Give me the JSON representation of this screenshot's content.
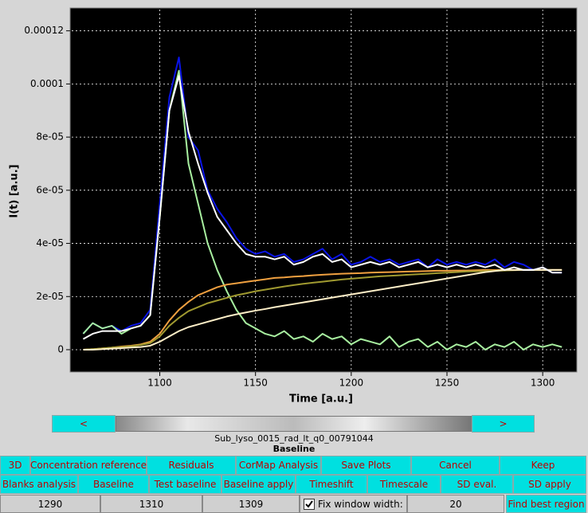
{
  "chart_data": {
    "type": "line",
    "x_label": "Time [a.u.]",
    "y_label": "I(t) [a.u.]",
    "xlim": [
      1054,
      1317
    ],
    "ylim": [
      -7.8e-06,
      0.000128
    ],
    "xticks": [
      1100,
      1150,
      1200,
      1250,
      1300
    ],
    "yticks": [
      0,
      {
        "value": 2e-05,
        "label": "2e-05"
      },
      {
        "value": 4e-05,
        "label": "4e-05"
      },
      {
        "value": 6e-05,
        "label": "6e-05"
      },
      {
        "value": 8e-05,
        "label": "8e-05"
      },
      0.0001,
      0.00012
    ],
    "grid": true,
    "background": "#000000",
    "grid_color": "#ffffff",
    "x": [
      1060,
      1065,
      1070,
      1075,
      1080,
      1085,
      1090,
      1095,
      1100,
      1105,
      1110,
      1115,
      1120,
      1125,
      1130,
      1135,
      1140,
      1145,
      1150,
      1155,
      1160,
      1165,
      1170,
      1175,
      1180,
      1185,
      1190,
      1195,
      1200,
      1205,
      1210,
      1215,
      1220,
      1225,
      1230,
      1235,
      1240,
      1245,
      1250,
      1255,
      1260,
      1265,
      1270,
      1275,
      1280,
      1285,
      1290,
      1295,
      1300,
      1305,
      1310
    ],
    "series": [
      {
        "color": "#0a14e6",
        "values": [
          6e-06,
          1e-05,
          8e-06,
          9e-06,
          7e-06,
          9e-06,
          1e-05,
          1.5e-05,
          5.5e-05,
          9.5e-05,
          0.00011,
          8e-05,
          7.5e-05,
          6e-05,
          5.3e-05,
          4.8e-05,
          4.2e-05,
          3.8e-05,
          3.6e-05,
          3.7e-05,
          3.5e-05,
          3.6e-05,
          3.3e-05,
          3.4e-05,
          3.6e-05,
          3.8e-05,
          3.4e-05,
          3.6e-05,
          3.2e-05,
          3.3e-05,
          3.5e-05,
          3.3e-05,
          3.4e-05,
          3.2e-05,
          3.3e-05,
          3.4e-05,
          3.1e-05,
          3.4e-05,
          3.2e-05,
          3.3e-05,
          3.2e-05,
          3.3e-05,
          3.2e-05,
          3.4e-05,
          3.1e-05,
          3.3e-05,
          3.2e-05,
          3e-05,
          3.1e-05,
          2.9e-05,
          2.9e-05
        ]
      },
      {
        "color": "#a8f0a0",
        "values": [
          6e-06,
          1e-05,
          8e-06,
          9e-06,
          6e-06,
          8e-06,
          9e-06,
          1.3e-05,
          5e-05,
          9e-05,
          0.000105,
          7e-05,
          5.5e-05,
          4e-05,
          3e-05,
          2.2e-05,
          1.5e-05,
          1e-05,
          8e-06,
          6e-06,
          5e-06,
          7e-06,
          4e-06,
          5e-06,
          3e-06,
          6e-06,
          4e-06,
          5e-06,
          2e-06,
          4e-06,
          3e-06,
          2e-06,
          5e-06,
          1e-06,
          3e-06,
          4e-06,
          1e-06,
          3e-06,
          0,
          2e-06,
          1e-06,
          3e-06,
          0,
          2e-06,
          1e-06,
          3e-06,
          0,
          2e-06,
          1e-06,
          2e-06,
          1e-06
        ]
      },
      {
        "color": "#f0a040",
        "values": [
          0,
          2e-07,
          5e-07,
          8e-07,
          1.2e-06,
          1.5e-06,
          2e-06,
          3e-06,
          6e-06,
          1.1e-05,
          1.5e-05,
          1.8e-05,
          2.05e-05,
          2.2e-05,
          2.35e-05,
          2.45e-05,
          2.5e-05,
          2.55e-05,
          2.6e-05,
          2.65e-05,
          2.7e-05,
          2.72e-05,
          2.75e-05,
          2.77e-05,
          2.8e-05,
          2.82e-05,
          2.84e-05,
          2.86e-05,
          2.87e-05,
          2.88e-05,
          2.9e-05,
          2.91e-05,
          2.92e-05,
          2.93e-05,
          2.94e-05,
          2.95e-05,
          2.96e-05,
          2.97e-05,
          2.97e-05,
          2.98e-05,
          2.98e-05,
          2.99e-05,
          3e-05,
          3e-05,
          3e-05,
          3e-05,
          3e-05,
          3e-05,
          3e-05,
          3e-05,
          3e-05
        ]
      },
      {
        "color": "#a09a30",
        "values": [
          0,
          2e-07,
          5e-07,
          8e-07,
          1e-06,
          1.3e-06,
          1.8e-06,
          2.5e-06,
          5e-06,
          9e-06,
          1.2e-05,
          1.45e-05,
          1.6e-05,
          1.75e-05,
          1.85e-05,
          1.95e-05,
          2.05e-05,
          2.12e-05,
          2.2e-05,
          2.26e-05,
          2.32e-05,
          2.38e-05,
          2.43e-05,
          2.48e-05,
          2.52e-05,
          2.56e-05,
          2.6e-05,
          2.64e-05,
          2.67e-05,
          2.7e-05,
          2.73e-05,
          2.76e-05,
          2.78e-05,
          2.8e-05,
          2.82e-05,
          2.84e-05,
          2.86e-05,
          2.88e-05,
          2.9e-05,
          2.92e-05,
          2.94e-05,
          2.95e-05,
          2.96e-05,
          2.97e-05,
          2.98e-05,
          2.99e-05,
          3e-05,
          3e-05,
          3e-05,
          3e-05,
          3e-05
        ]
      },
      {
        "color": "#fff0c8",
        "values": [
          0,
          0,
          2e-07,
          4e-07,
          6e-07,
          8e-07,
          1e-06,
          1.5e-06,
          3e-06,
          5e-06,
          7e-06,
          8.5e-06,
          9.5e-06,
          1.05e-05,
          1.15e-05,
          1.25e-05,
          1.33e-05,
          1.4e-05,
          1.47e-05,
          1.53e-05,
          1.6e-05,
          1.66e-05,
          1.72e-05,
          1.78e-05,
          1.84e-05,
          1.9e-05,
          1.96e-05,
          2.02e-05,
          2.08e-05,
          2.14e-05,
          2.2e-05,
          2.26e-05,
          2.32e-05,
          2.38e-05,
          2.44e-05,
          2.5e-05,
          2.56e-05,
          2.62e-05,
          2.68e-05,
          2.74e-05,
          2.8e-05,
          2.86e-05,
          2.92e-05,
          2.96e-05,
          3e-05,
          3e-05,
          3e-05,
          3e-05,
          3e-05,
          3e-05,
          3e-05
        ]
      },
      {
        "color": "#ffffff",
        "values": [
          4e-06,
          6e-06,
          7e-06,
          7e-06,
          7e-06,
          8e-06,
          9e-06,
          1.3e-05,
          5e-05,
          9e-05,
          0.000103,
          8.2e-05,
          7e-05,
          5.9e-05,
          5e-05,
          4.5e-05,
          4e-05,
          3.6e-05,
          3.5e-05,
          3.5e-05,
          3.4e-05,
          3.5e-05,
          3.2e-05,
          3.3e-05,
          3.5e-05,
          3.6e-05,
          3.3e-05,
          3.4e-05,
          3.1e-05,
          3.2e-05,
          3.3e-05,
          3.2e-05,
          3.3e-05,
          3.1e-05,
          3.2e-05,
          3.3e-05,
          3.1e-05,
          3.2e-05,
          3.1e-05,
          3.2e-05,
          3.1e-05,
          3.2e-05,
          3.1e-05,
          3.2e-05,
          3e-05,
          3.1e-05,
          3e-05,
          3e-05,
          3.1e-05,
          2.9e-05,
          2.9e-05
        ]
      }
    ]
  },
  "scroller": {
    "prev": "<",
    "next": ">",
    "file": "Sub_lyso_0015_rad_lt_q0_00791044",
    "mode": "Baseline"
  },
  "controls": {
    "row1": [
      "3D",
      "Concentration reference",
      "Residuals",
      "CorMap Analysis",
      "Save Plots",
      "Cancel",
      "Keep"
    ],
    "row2": [
      "Blanks analysis",
      "Baseline",
      "Test baseline",
      "Baseline apply",
      "Timeshift",
      "Timescale",
      "SD eval.",
      "SD apply"
    ],
    "row3": {
      "start": "1290",
      "end": "1310",
      "current": "1309",
      "fix_label": "Fix window width:",
      "width": "20",
      "find": "Find best region"
    }
  }
}
